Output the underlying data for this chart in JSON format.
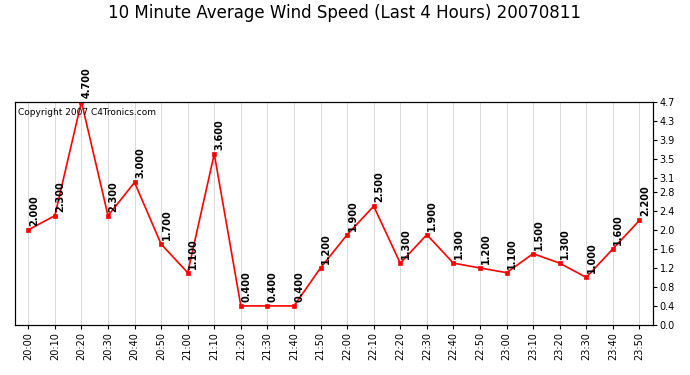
{
  "title": "10 Minute Average Wind Speed (Last 4 Hours) 20070811",
  "copyright": "Copyright 2007 C4Tronics.com",
  "x_labels": [
    "20:00",
    "20:10",
    "20:20",
    "20:30",
    "20:40",
    "20:50",
    "21:00",
    "21:10",
    "21:20",
    "21:30",
    "21:40",
    "21:50",
    "22:00",
    "22:10",
    "22:20",
    "22:30",
    "22:40",
    "22:50",
    "23:00",
    "23:10",
    "23:20",
    "23:30",
    "23:40",
    "23:50"
  ],
  "y_values": [
    2.0,
    2.3,
    4.7,
    2.3,
    3.0,
    1.7,
    1.1,
    3.6,
    0.4,
    0.4,
    0.4,
    1.2,
    1.9,
    2.5,
    1.3,
    1.9,
    1.3,
    1.2,
    1.1,
    1.5,
    1.3,
    1.0,
    1.6,
    2.2
  ],
  "annotations": [
    "2.000",
    "2.300",
    "4.700",
    "2.300",
    "3.000",
    "1.700",
    "1.100",
    "3.600",
    "0.400",
    "0.400",
    "0.400",
    "1.200",
    "1.900",
    "2.500",
    "1.300",
    "1.900",
    "1.300",
    "1.200",
    "1.100",
    "1.500",
    "1.300",
    "1.000",
    "1.600",
    "2.200"
  ],
  "line_color": "#ff0000",
  "marker_color": "#ff0000",
  "bg_color": "#ffffff",
  "grid_color": "#bbbbbb",
  "ylim": [
    0.0,
    4.7
  ],
  "yticks_right": [
    0.0,
    0.4,
    0.8,
    1.2,
    1.6,
    2.0,
    2.4,
    2.8,
    3.1,
    3.5,
    3.9,
    4.3,
    4.7
  ],
  "title_fontsize": 12,
  "label_fontsize": 7,
  "annotation_fontsize": 7,
  "copyright_fontsize": 6.5
}
